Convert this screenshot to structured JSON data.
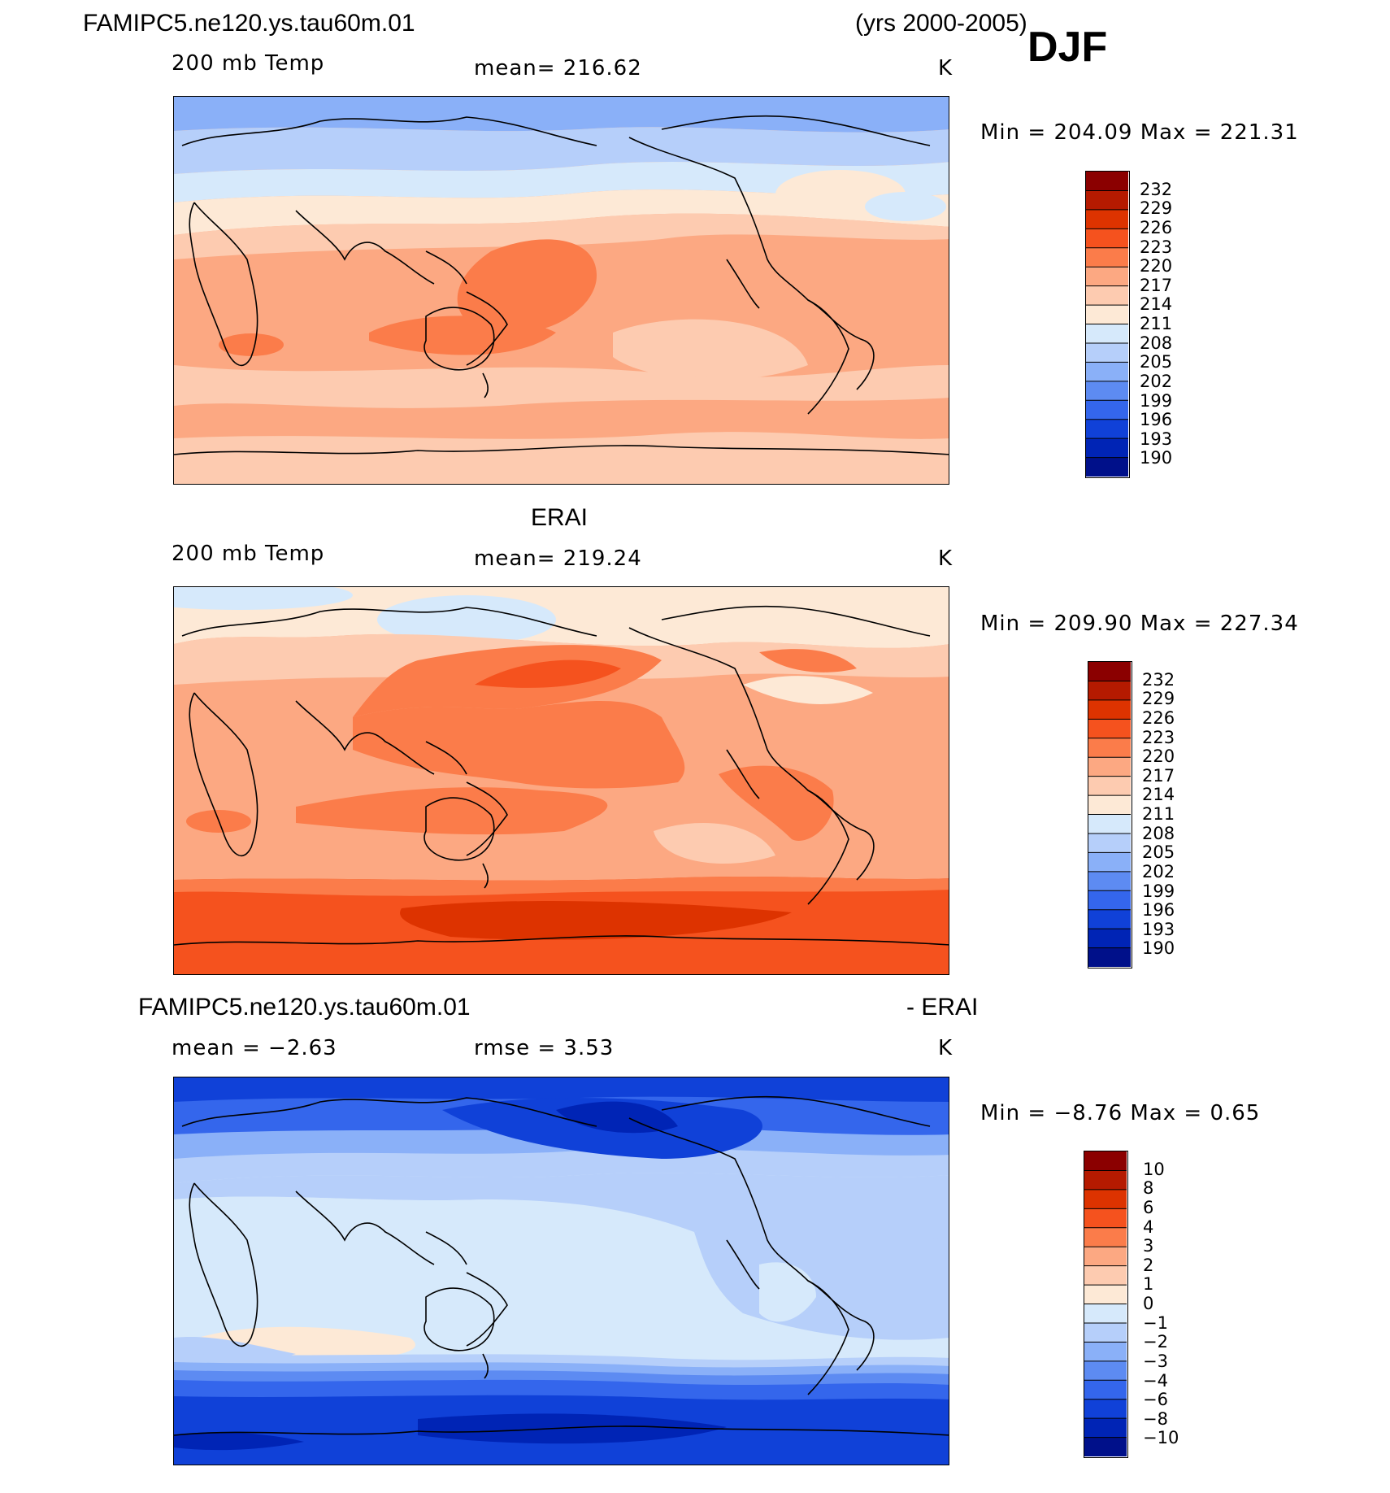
{
  "header": {
    "case_name": "FAMIPC5.ne120.ys.tau60m.01",
    "years": "(yrs 2000-2005)",
    "season": "DJF"
  },
  "panels": [
    {
      "id": "model",
      "top_title": "",
      "var_label": "200 mb Temp",
      "stat_text": "mean=  216.62",
      "unit": "K",
      "minmax": "Min  =  204.09  Max  =  221.31"
    },
    {
      "id": "obs",
      "top_title": "ERAI",
      "var_label": "200 mb Temp",
      "stat_text": "mean=  219.24",
      "unit": "K",
      "minmax": "Min  =  209.90  Max  =  227.34"
    },
    {
      "id": "diff",
      "top_title_left": "FAMIPC5.ne120.ys.tau60m.01",
      "top_title_right": "- ERAI",
      "var_label": "mean  =   −2.63",
      "stat_text": "rmse  =     3.53",
      "unit": "K",
      "minmax": "Min  =    −8.76  Max  =      0.65"
    }
  ],
  "chart_data": [
    {
      "type": "heatmap",
      "title": "200 mb Temp",
      "units": "K",
      "mean": 216.62,
      "min": 204.09,
      "max": 221.31,
      "colorbar_levels": [
        232,
        229,
        226,
        223,
        220,
        217,
        214,
        211,
        208,
        205,
        202,
        199,
        196,
        193,
        190
      ],
      "colors": [
        "#8b0000",
        "#b51a00",
        "#dd3300",
        "#f5521e",
        "#fb7c4a",
        "#fca882",
        "#fdcbb0",
        "#fde9d6",
        "#d6e9fb",
        "#b6cffa",
        "#8ab0f8",
        "#5d8bf2",
        "#3466ec",
        "#1041d8",
        "#0024b5",
        "#00108a"
      ]
    },
    {
      "type": "heatmap",
      "title": "ERAI 200 mb Temp",
      "units": "K",
      "mean": 219.24,
      "min": 209.9,
      "max": 227.34,
      "colorbar_levels": [
        232,
        229,
        226,
        223,
        220,
        217,
        214,
        211,
        208,
        205,
        202,
        199,
        196,
        193,
        190
      ],
      "colors": [
        "#8b0000",
        "#b51a00",
        "#dd3300",
        "#f5521e",
        "#fb7c4a",
        "#fca882",
        "#fdcbb0",
        "#fde9d6",
        "#d6e9fb",
        "#b6cffa",
        "#8ab0f8",
        "#5d8bf2",
        "#3466ec",
        "#1041d8",
        "#0024b5",
        "#00108a"
      ]
    },
    {
      "type": "heatmap",
      "title": "FAMIPC5.ne120.ys.tau60m.01 - ERAI",
      "units": "K",
      "mean": -2.63,
      "rmse": 3.53,
      "min": -8.76,
      "max": 0.65,
      "colorbar_levels": [
        "10",
        "8",
        "6",
        "4",
        "3",
        "2",
        "1",
        "0",
        "−1",
        "−2",
        "−3",
        "−4",
        "−6",
        "−8",
        "−10"
      ],
      "colors": [
        "#8b0000",
        "#b51a00",
        "#dd3300",
        "#f5521e",
        "#fb7c4a",
        "#fca882",
        "#fdcbb0",
        "#fde9d6",
        "#d6e9fb",
        "#b6cffa",
        "#8ab0f8",
        "#5d8bf2",
        "#3466ec",
        "#1041d8",
        "#0024b5",
        "#00108a"
      ]
    }
  ]
}
